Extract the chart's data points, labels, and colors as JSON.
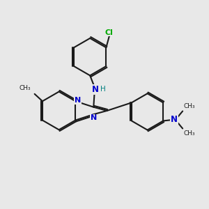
{
  "bg_color": "#e8e8e8",
  "bond_color": "#1a1a1a",
  "n_color": "#0000cd",
  "cl_color": "#00aa00",
  "h_color": "#008080",
  "lw": 1.5,
  "xlim": [
    0,
    10
  ],
  "ylim": [
    0,
    10
  ]
}
